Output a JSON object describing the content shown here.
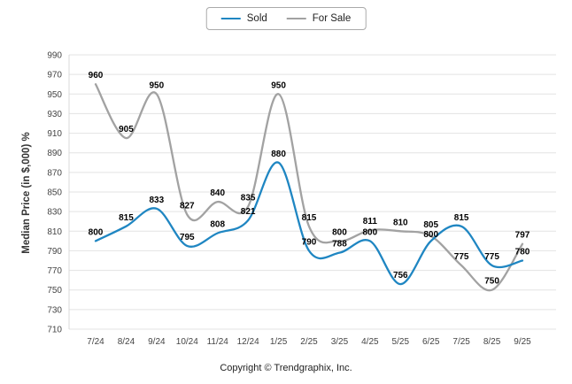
{
  "chart_data": {
    "type": "line",
    "title": "",
    "ylabel": "Median Price (in $,000) %",
    "xlabel": "",
    "categories": [
      "7/24",
      "8/24",
      "9/24",
      "10/24",
      "11/24",
      "12/24",
      "1/25",
      "2/25",
      "3/25",
      "4/25",
      "5/25",
      "6/25",
      "7/25",
      "8/25",
      "9/25"
    ],
    "series": [
      {
        "name": "Sold",
        "color": "#1f86c2",
        "values": [
          800,
          815,
          833,
          795,
          808,
          821,
          880,
          790,
          788,
          800,
          756,
          800,
          815,
          775,
          780
        ]
      },
      {
        "name": "For Sale",
        "color": "#a2a2a2",
        "values": [
          960,
          905,
          950,
          827,
          840,
          835,
          950,
          815,
          800,
          811,
          810,
          805,
          775,
          750,
          797
        ]
      }
    ],
    "ylim": [
      710,
      990
    ],
    "ytick_step": 20,
    "grid": true,
    "smooth": true,
    "legend_position": "top",
    "data_labels": true
  },
  "footer": {
    "copyright": "Copyright © Trendgraphix, Inc."
  }
}
